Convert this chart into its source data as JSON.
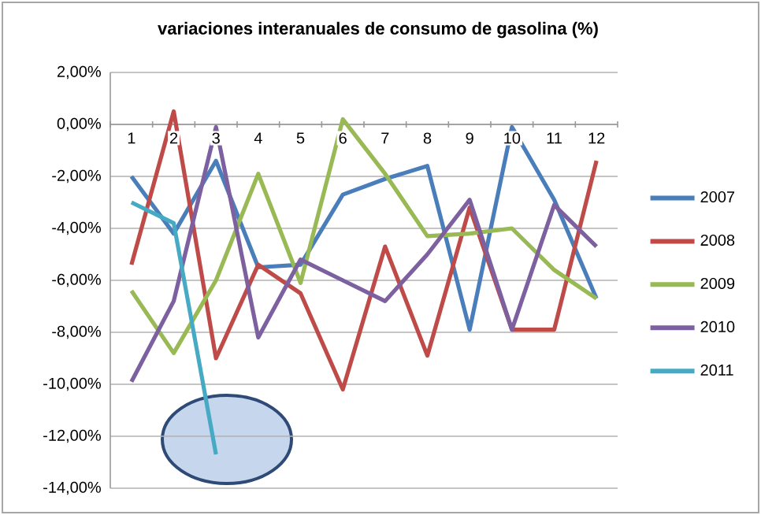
{
  "chart_data": {
    "type": "line",
    "title": "variaciones interanuales de consumo de gasolina (%)",
    "categories": [
      "1",
      "2",
      "3",
      "4",
      "5",
      "6",
      "7",
      "8",
      "9",
      "10",
      "11",
      "12"
    ],
    "series": [
      {
        "name": "2007",
        "color": "#4a7ebb",
        "values": [
          -2.0,
          -4.2,
          -1.4,
          -5.5,
          -5.4,
          -2.7,
          -2.1,
          -1.6,
          -7.9,
          -0.1,
          -2.9,
          -6.7
        ]
      },
      {
        "name": "2008",
        "color": "#be4b48",
        "values": [
          -5.4,
          0.5,
          -9.0,
          -5.4,
          -6.5,
          -10.2,
          -4.7,
          -8.9,
          -3.2,
          -7.9,
          -7.9,
          -1.4
        ]
      },
      {
        "name": "2009",
        "color": "#98b954",
        "values": [
          -6.4,
          -8.8,
          -6.0,
          -1.9,
          -6.1,
          0.2,
          -1.9,
          -4.3,
          -4.2,
          -4.0,
          -5.6,
          -6.7
        ]
      },
      {
        "name": "2010",
        "color": "#7d60a0",
        "values": [
          -9.9,
          -6.8,
          -0.1,
          -8.2,
          -5.2,
          -6.0,
          -6.8,
          -5.0,
          -2.9,
          -7.9,
          -3.1,
          -4.7
        ]
      },
      {
        "name": "2011",
        "color": "#46aac5",
        "values": [
          -3.0,
          -3.8,
          -12.7,
          null,
          null,
          null,
          null,
          null,
          null,
          null,
          null,
          null
        ]
      }
    ],
    "ylim": [
      -14,
      2
    ],
    "yticks": [
      {
        "value": 2,
        "label": "2,00%"
      },
      {
        "value": 0,
        "label": "0,00%"
      },
      {
        "value": -2,
        "label": "-2,00%"
      },
      {
        "value": -4,
        "label": "-4,00%"
      },
      {
        "value": -6,
        "label": "-6,00%"
      },
      {
        "value": -8,
        "label": "-8,00%"
      },
      {
        "value": -10,
        "label": "-10,00%"
      },
      {
        "value": -12,
        "label": "-12,00%"
      },
      {
        "value": -14,
        "label": "-14,00%"
      }
    ],
    "grid": "y",
    "legend": "right",
    "marker": "none",
    "line_style": "solid"
  }
}
